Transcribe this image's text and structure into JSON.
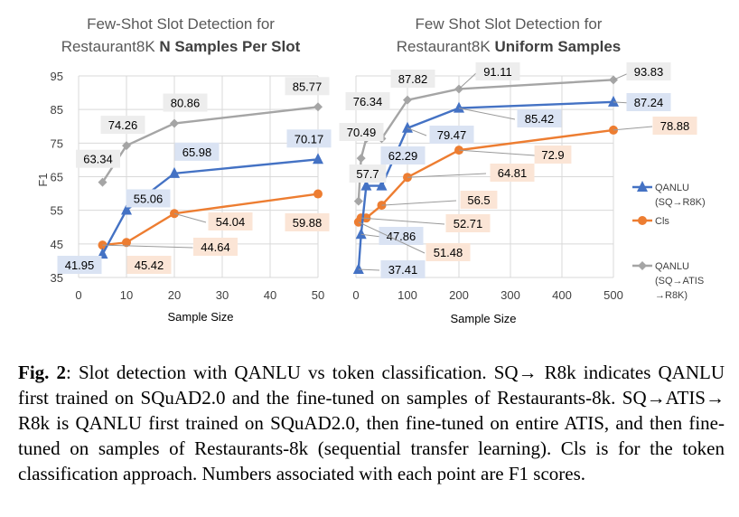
{
  "chart_data": [
    {
      "type": "line",
      "title": "Few-Shot Slot Detection for",
      "subtitle_prefix": "Restaurant8K ",
      "subtitle_bold": "N Samples Per Slot",
      "xlabel": "Sample Size",
      "ylabel": "F1",
      "xlim": [
        0,
        50
      ],
      "ylim": [
        35,
        95
      ],
      "xticks": [
        0,
        10,
        20,
        30,
        40,
        50
      ],
      "yticks": [
        35,
        45,
        55,
        65,
        75,
        85,
        95
      ],
      "grid": true,
      "series": [
        {
          "key": "qanlu",
          "color": "#4472C4",
          "marker": "triangle",
          "x": [
            5,
            10,
            20,
            50
          ],
          "y": [
            41.95,
            55.06,
            65.98,
            70.17
          ],
          "labels": [
            "41.95",
            "55.06",
            "65.98",
            "70.17"
          ]
        },
        {
          "key": "cls",
          "color": "#ED7D31",
          "marker": "circle",
          "x": [
            5,
            10,
            20,
            50
          ],
          "y": [
            44.64,
            45.42,
            54.04,
            59.88
          ],
          "labels": [
            "44.64",
            "45.42",
            "54.04",
            "59.88"
          ]
        },
        {
          "key": "atis",
          "color": "#A5A5A5",
          "marker": "diamond",
          "x": [
            5,
            10,
            20,
            50
          ],
          "y": [
            63.34,
            74.26,
            80.86,
            85.77
          ],
          "labels": [
            "63.34",
            "74.26",
            "80.86",
            "85.77"
          ]
        }
      ]
    },
    {
      "type": "line",
      "title": "Few Shot Slot Detection for",
      "subtitle_prefix": "Restaurant8K ",
      "subtitle_bold": "Uniform Samples",
      "xlabel": "Sample Size",
      "ylabel": "",
      "xlim": [
        0,
        500
      ],
      "ylim": [
        35,
        95
      ],
      "xticks": [
        0,
        100,
        200,
        300,
        400,
        500
      ],
      "yticks": [
        35,
        45,
        55,
        65,
        75,
        85,
        95
      ],
      "grid": true,
      "legend_position": "right",
      "legend": [
        {
          "key": "qanlu",
          "label_lines": [
            "QANLU",
            "(SQ→R8K)"
          ]
        },
        {
          "key": "cls",
          "label_lines": [
            "Cls"
          ]
        },
        {
          "key": "atis",
          "label_lines": [
            "QANLU",
            "(SQ→ATIS",
            "→R8K)"
          ]
        }
      ],
      "series": [
        {
          "key": "qanlu",
          "color": "#4472C4",
          "marker": "triangle",
          "x": [
            5,
            10,
            20,
            50,
            100,
            200,
            500
          ],
          "y": [
            37.41,
            47.86,
            62.29,
            62.29,
            79.47,
            85.42,
            87.24
          ],
          "labels": [
            "37.41",
            "47.86",
            "",
            "62.29",
            "79.47",
            "85.42",
            "87.24"
          ]
        },
        {
          "key": "cls",
          "color": "#ED7D31",
          "marker": "circle",
          "x": [
            5,
            10,
            20,
            50,
            100,
            200,
            500
          ],
          "y": [
            51.48,
            52.71,
            52.71,
            56.5,
            64.81,
            72.9,
            78.88
          ],
          "labels": [
            "51.48",
            "52.71",
            "",
            "56.5",
            "64.81",
            "72.9",
            "78.88"
          ]
        },
        {
          "key": "atis",
          "color": "#A5A5A5",
          "marker": "diamond",
          "x": [
            5,
            10,
            20,
            50,
            100,
            200,
            500
          ],
          "y": [
            57.7,
            70.49,
            76.34,
            76.34,
            87.82,
            91.11,
            93.83
          ],
          "labels": [
            "57.7",
            "70.49",
            "",
            "76.34",
            "87.82",
            "91.11",
            "93.83"
          ]
        }
      ]
    }
  ],
  "caption": {
    "label": "Fig. 2",
    "text": ":  Slot detection with QANLU vs token classification.  SQ→ R8k indicates QANLU first trained on SQuAD2.0 and the fine-tuned on samples of Restaurants-8k.  SQ→ATIS→ R8k is QANLU first trained on SQuAD2.0, then fine-tuned on entire ATIS, and then fine-tuned on samples of Restaurants-8k (sequential transfer learning). Cls is for the token classification approach. Numbers associated with each point are F1 scores."
  }
}
